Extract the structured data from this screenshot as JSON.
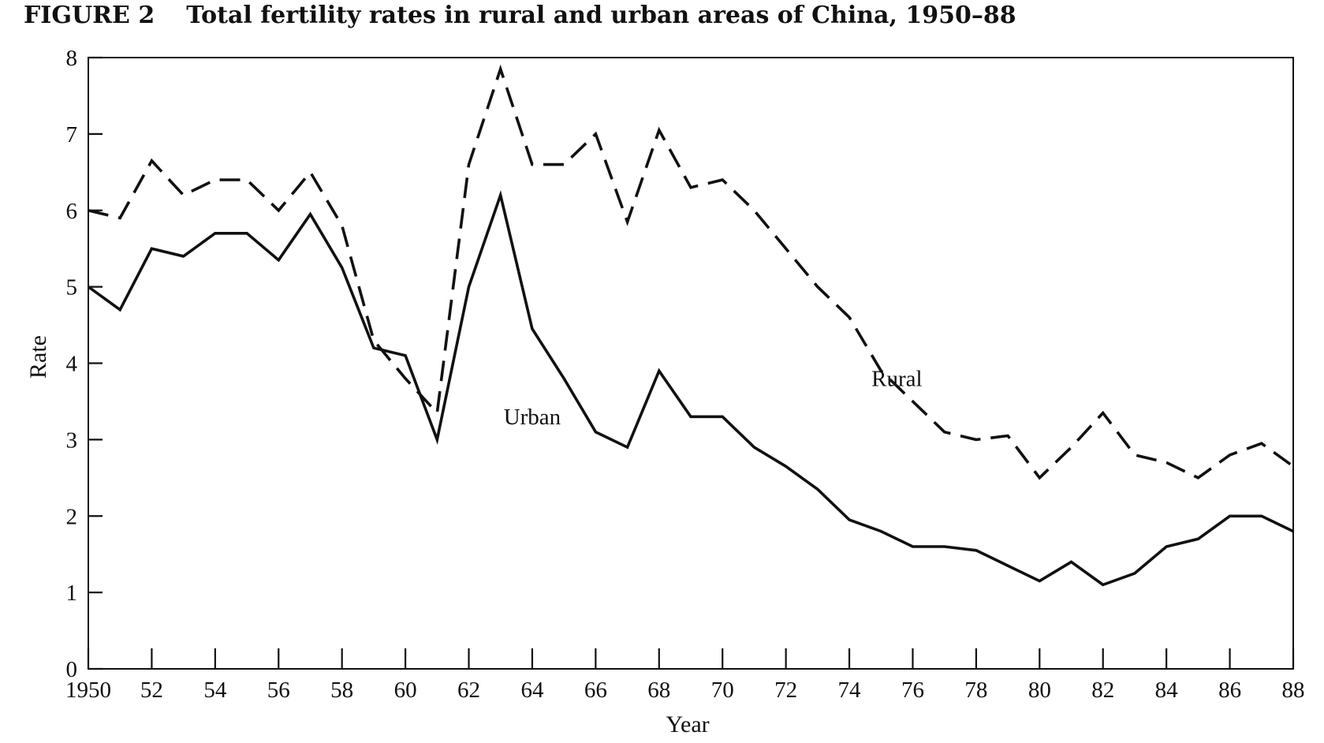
{
  "figure": {
    "label": "FIGURE 2",
    "title": "Total fertility rates in rural and urban areas of China, 1950–88"
  },
  "chart_data": {
    "type": "line",
    "title": "Total fertility rates in rural and urban areas of China, 1950–88",
    "xlabel": "Year",
    "ylabel": "Rate",
    "xlim": [
      1950,
      1988
    ],
    "ylim": [
      0,
      8
    ],
    "grid": false,
    "legend": "none (series labeled inline)",
    "x_tick_labels": [
      "1950",
      "52",
      "54",
      "56",
      "58",
      "60",
      "62",
      "64",
      "66",
      "68",
      "70",
      "72",
      "74",
      "76",
      "78",
      "80",
      "82",
      "84",
      "86",
      "88"
    ],
    "y_tick_labels": [
      "0",
      "1",
      "2",
      "3",
      "4",
      "5",
      "6",
      "7",
      "8"
    ],
    "x": [
      1950,
      1951,
      1952,
      1953,
      1954,
      1955,
      1956,
      1957,
      1958,
      1959,
      1960,
      1961,
      1962,
      1963,
      1964,
      1965,
      1966,
      1967,
      1968,
      1969,
      1970,
      1971,
      1972,
      1973,
      1974,
      1975,
      1976,
      1977,
      1978,
      1979,
      1980,
      1981,
      1982,
      1983,
      1984,
      1985,
      1986,
      1987,
      1988
    ],
    "series": [
      {
        "name": "Rural",
        "style": "dashed",
        "values": [
          6.0,
          5.9,
          6.65,
          6.2,
          6.4,
          6.4,
          6.0,
          6.5,
          5.8,
          4.3,
          3.8,
          3.35,
          6.6,
          7.85,
          6.6,
          6.6,
          7.0,
          5.85,
          7.05,
          6.3,
          6.4,
          6.0,
          5.5,
          5.0,
          4.6,
          3.9,
          3.5,
          3.1,
          3.0,
          3.05,
          2.5,
          2.9,
          3.35,
          2.8,
          2.7,
          2.5,
          2.8,
          2.95,
          2.65
        ]
      },
      {
        "name": "Urban",
        "style": "solid",
        "values": [
          5.0,
          4.7,
          5.5,
          5.4,
          5.7,
          5.7,
          5.35,
          5.95,
          5.25,
          4.2,
          4.1,
          3.0,
          5.0,
          6.2,
          4.45,
          3.8,
          3.1,
          2.9,
          3.9,
          3.3,
          3.3,
          2.9,
          2.65,
          2.35,
          1.95,
          1.8,
          1.6,
          1.6,
          1.55,
          1.35,
          1.15,
          1.4,
          1.1,
          1.25,
          1.6,
          1.7,
          2.0,
          2.0,
          1.8
        ]
      }
    ]
  },
  "style": {
    "line_color": "#111111",
    "background": "#ffffff"
  }
}
